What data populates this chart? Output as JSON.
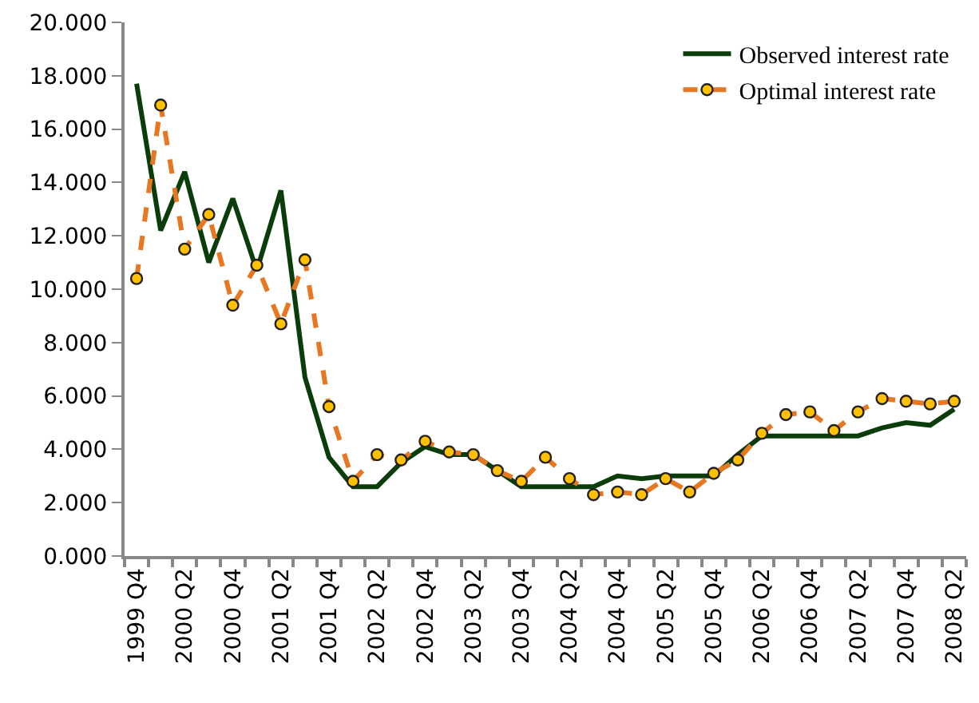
{
  "chart_data": {
    "type": "line",
    "categories": [
      "1999 Q4",
      null,
      "2000 Q2",
      null,
      "2000 Q4",
      null,
      "2001 Q2",
      null,
      "2001 Q4",
      null,
      "2002 Q2",
      null,
      "2002 Q4",
      null,
      "2003 Q2",
      null,
      "2003 Q4",
      null,
      "2004 Q2",
      null,
      "2004 Q4",
      null,
      "2005 Q2",
      null,
      "2005 Q4",
      null,
      "2006 Q2",
      null,
      "2006 Q4",
      null,
      "2007 Q2",
      null,
      "2007 Q4",
      null,
      "2008 Q2"
    ],
    "series": [
      {
        "name": "Observed interest rate",
        "color": "#0b3d0b",
        "line_style": "solid",
        "marker": "none",
        "values": [
          17.7,
          12.2,
          14.4,
          11.0,
          13.4,
          10.7,
          13.7,
          6.7,
          3.7,
          2.6,
          2.6,
          3.5,
          4.1,
          3.8,
          3.8,
          3.2,
          2.6,
          2.6,
          2.6,
          2.6,
          3.0,
          2.9,
          3.0,
          3.0,
          3.0,
          3.8,
          4.5,
          4.5,
          4.5,
          4.5,
          4.5,
          4.8,
          5.0,
          4.9,
          5.5
        ]
      },
      {
        "name": "Optimal interest rate",
        "color": "#e87722",
        "line_style": "dashed",
        "marker": "circle",
        "values": [
          10.4,
          16.9,
          11.5,
          12.8,
          9.4,
          10.9,
          8.7,
          11.1,
          5.6,
          2.8,
          3.8,
          3.6,
          4.3,
          3.9,
          3.8,
          3.2,
          2.8,
          3.7,
          2.9,
          2.3,
          2.4,
          2.3,
          2.9,
          2.4,
          3.1,
          3.6,
          4.6,
          5.3,
          5.4,
          4.7,
          5.4,
          5.9,
          5.8,
          5.7,
          5.8
        ]
      }
    ],
    "ylim": [
      0,
      20
    ],
    "yticks": [
      {
        "value": 0,
        "label": "0.000"
      },
      {
        "value": 2,
        "label": "2.000"
      },
      {
        "value": 4,
        "label": "4.000"
      },
      {
        "value": 6,
        "label": "6.000"
      },
      {
        "value": 8,
        "label": "8.000"
      },
      {
        "value": 10,
        "label": "10.000"
      },
      {
        "value": 12,
        "label": "12.000"
      },
      {
        "value": 14,
        "label": "14.000"
      },
      {
        "value": 16,
        "label": "16.000"
      },
      {
        "value": 18,
        "label": "18.000"
      },
      {
        "value": 20,
        "label": "20.000"
      }
    ],
    "legend": "top right"
  }
}
